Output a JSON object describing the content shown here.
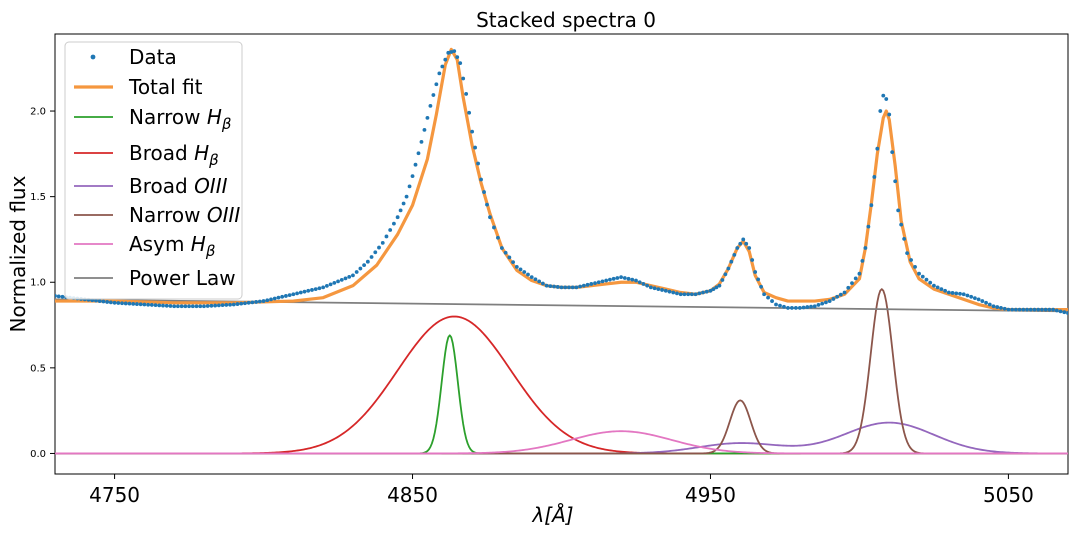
{
  "chart_data": {
    "type": "line",
    "title": "Stacked spectra 0",
    "xlabel": "λ[Å]",
    "ylabel": "Normalized flux",
    "xlim": [
      4730,
      5070
    ],
    "ylim": [
      -0.12,
      2.45
    ],
    "xticks": [
      4750,
      4850,
      4950,
      5050
    ],
    "yticks": [
      0.0,
      0.5,
      1.0,
      1.5,
      2.0
    ],
    "ytick_labels": [
      "0.0",
      "0.5",
      "1.0",
      "1.5",
      "2.0"
    ],
    "legend_position": "top-left",
    "grid": false,
    "series": [
      {
        "name": "Data",
        "style": "dots",
        "color": "#1f77b4",
        "x": [
          4730,
          4740,
          4750,
          4760,
          4770,
          4780,
          4790,
          4800,
          4810,
          4820,
          4830,
          4835,
          4840,
          4845,
          4848,
          4850,
          4853,
          4856,
          4859,
          4862,
          4864,
          4866,
          4868,
          4870,
          4873,
          4876,
          4880,
          4885,
          4890,
          4895,
          4900,
          4905,
          4910,
          4915,
          4920,
          4925,
          4930,
          4935,
          4940,
          4945,
          4950,
          4953,
          4956,
          4959,
          4961,
          4963,
          4965,
          4968,
          4972,
          4976,
          4980,
          4985,
          4990,
          4995,
          5000,
          5002,
          5004,
          5006,
          5007,
          5008,
          5009,
          5010,
          5011,
          5013,
          5016,
          5020,
          5025,
          5030,
          5035,
          5040,
          5045,
          5050,
          5055,
          5060,
          5065,
          5070
        ],
        "y": [
          0.92,
          0.9,
          0.88,
          0.87,
          0.86,
          0.86,
          0.87,
          0.89,
          0.93,
          0.97,
          1.04,
          1.12,
          1.23,
          1.38,
          1.5,
          1.62,
          1.82,
          2.03,
          2.22,
          2.34,
          2.35,
          2.28,
          2.1,
          1.88,
          1.6,
          1.38,
          1.2,
          1.09,
          1.03,
          0.98,
          0.97,
          0.97,
          0.99,
          1.01,
          1.03,
          1.01,
          0.97,
          0.95,
          0.93,
          0.93,
          0.95,
          0.98,
          1.08,
          1.2,
          1.25,
          1.2,
          1.06,
          0.93,
          0.87,
          0.85,
          0.85,
          0.86,
          0.89,
          0.94,
          1.05,
          1.2,
          1.45,
          1.78,
          2.0,
          2.09,
          2.07,
          1.98,
          1.76,
          1.42,
          1.17,
          1.05,
          0.98,
          0.94,
          0.93,
          0.9,
          0.86,
          0.84,
          0.84,
          0.84,
          0.84,
          0.82
        ]
      },
      {
        "name": "Total fit",
        "style": "thick",
        "color": "#f5973f",
        "x": [
          4730,
          4750,
          4770,
          4790,
          4810,
          4820,
          4830,
          4838,
          4845,
          4850,
          4855,
          4858,
          4861,
          4863,
          4865,
          4867,
          4870,
          4873,
          4876,
          4880,
          4885,
          4890,
          4895,
          4900,
          4905,
          4910,
          4915,
          4920,
          4925,
          4930,
          4935,
          4940,
          4945,
          4950,
          4953,
          4956,
          4959,
          4961,
          4963,
          4965,
          4968,
          4972,
          4976,
          4980,
          4985,
          4990,
          4995,
          5000,
          5002,
          5004,
          5006,
          5008,
          5009,
          5010,
          5012,
          5014,
          5017,
          5020,
          5025,
          5030,
          5035,
          5040,
          5045,
          5050,
          5055,
          5060,
          5065,
          5070
        ],
        "y": [
          0.89,
          0.89,
          0.88,
          0.88,
          0.89,
          0.91,
          0.98,
          1.1,
          1.28,
          1.45,
          1.72,
          1.98,
          2.27,
          2.36,
          2.3,
          2.08,
          1.8,
          1.58,
          1.4,
          1.2,
          1.07,
          1.01,
          0.98,
          0.97,
          0.97,
          0.98,
          0.99,
          1.0,
          1.0,
          0.98,
          0.96,
          0.94,
          0.93,
          0.95,
          0.99,
          1.08,
          1.2,
          1.24,
          1.18,
          1.04,
          0.94,
          0.91,
          0.89,
          0.89,
          0.89,
          0.9,
          0.93,
          1.02,
          1.2,
          1.46,
          1.75,
          1.96,
          2.0,
          1.95,
          1.68,
          1.36,
          1.12,
          1.02,
          0.96,
          0.93,
          0.9,
          0.87,
          0.85,
          0.84,
          0.84,
          0.84,
          0.84,
          0.84
        ]
      },
      {
        "name": "Narrow H_β",
        "style": "line",
        "color": "#2ca02c",
        "gaussian": {
          "amp": 0.69,
          "mu": 4862.5,
          "sigma": 2.7
        }
      },
      {
        "name": "Broad H_β",
        "style": "line",
        "color": "#d62728",
        "gaussian": {
          "amp": 0.8,
          "mu": 4864,
          "sigma": 19
        }
      },
      {
        "name": "Broad OIII",
        "style": "line",
        "color": "#9467bd",
        "gaussians": [
          {
            "amp": 0.06,
            "mu": 4960,
            "sigma": 14
          },
          {
            "amp": 0.18,
            "mu": 5010,
            "sigma": 15
          }
        ]
      },
      {
        "name": "Narrow OIII",
        "style": "line",
        "color": "#8c564b",
        "gaussians": [
          {
            "amp": 0.31,
            "mu": 4960,
            "sigma": 3.5
          },
          {
            "amp": 0.96,
            "mu": 5007.5,
            "sigma": 3.7
          }
        ]
      },
      {
        "name": "Asym H_β",
        "style": "line",
        "color": "#e377c2",
        "gaussian": {
          "amp": 0.13,
          "mu": 4920,
          "sigma": 17
        }
      },
      {
        "name": "Power Law",
        "style": "line",
        "color": "#7f7f7f",
        "linear": {
          "y_start": 0.9,
          "y_end": 0.83
        }
      }
    ]
  }
}
